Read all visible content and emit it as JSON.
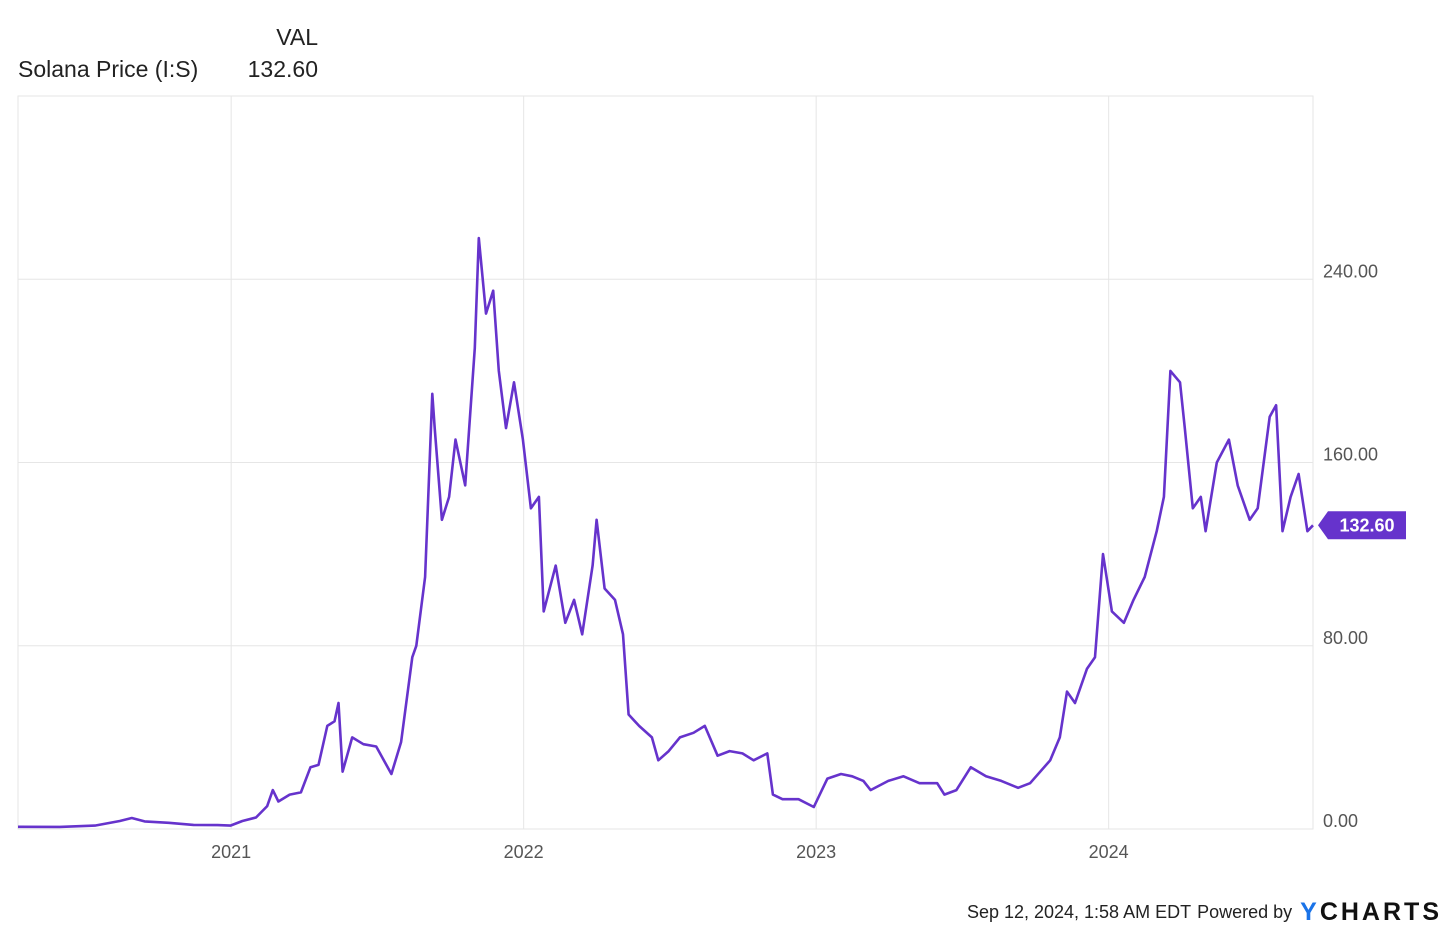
{
  "legend": {
    "header": "VAL",
    "series_name": "Solana Price (I:S)",
    "series_value": "132.60"
  },
  "last_value_badge": "132.60",
  "footer": {
    "timestamp": "Sep 12, 2024, 1:58 AM EDT",
    "powered_by": "Powered by",
    "brand_y": "Y",
    "brand_rest": "CHARTS"
  },
  "colors": {
    "series": "#6633cc",
    "grid": "#e6e6e6",
    "axis_text": "#555555",
    "brand_accent": "#1a73e8"
  },
  "chart_data": {
    "type": "line",
    "title": "",
    "xlabel": "",
    "ylabel": "",
    "x_ticks": [
      {
        "date": "2021-01-01",
        "label": "2021"
      },
      {
        "date": "2022-01-01",
        "label": "2022"
      },
      {
        "date": "2023-01-01",
        "label": "2023"
      },
      {
        "date": "2024-01-01",
        "label": "2024"
      }
    ],
    "y_ticks": [
      "0.00",
      "80.00",
      "160.00",
      "240.00"
    ],
    "ylim": [
      0,
      320
    ],
    "xlim": [
      "2020-04-10",
      "2024-09-12"
    ],
    "grid": true,
    "legend_position": "top-left",
    "series": [
      {
        "name": "Solana Price (I:S)",
        "points": [
          [
            "2020-04-10",
            0.95
          ],
          [
            "2020-06-01",
            0.9
          ],
          [
            "2020-07-15",
            1.5
          ],
          [
            "2020-08-15",
            3.5
          ],
          [
            "2020-08-30",
            4.8
          ],
          [
            "2020-09-15",
            3.3
          ],
          [
            "2020-10-15",
            2.7
          ],
          [
            "2020-11-15",
            1.8
          ],
          [
            "2020-12-15",
            1.7
          ],
          [
            "2020-12-31",
            1.5
          ],
          [
            "2021-01-15",
            3.5
          ],
          [
            "2021-02-01",
            5
          ],
          [
            "2021-02-15",
            10
          ],
          [
            "2021-02-22",
            17
          ],
          [
            "2021-03-01",
            12
          ],
          [
            "2021-03-15",
            15
          ],
          [
            "2021-03-29",
            16
          ],
          [
            "2021-04-10",
            27
          ],
          [
            "2021-04-20",
            28
          ],
          [
            "2021-05-01",
            45
          ],
          [
            "2021-05-10",
            47
          ],
          [
            "2021-05-15",
            55
          ],
          [
            "2021-05-20",
            25
          ],
          [
            "2021-06-01",
            40
          ],
          [
            "2021-06-15",
            37
          ],
          [
            "2021-07-01",
            36
          ],
          [
            "2021-07-20",
            24
          ],
          [
            "2021-08-01",
            38
          ],
          [
            "2021-08-15",
            75
          ],
          [
            "2021-08-20",
            80
          ],
          [
            "2021-08-31",
            110
          ],
          [
            "2021-09-09",
            190
          ],
          [
            "2021-09-12",
            175
          ],
          [
            "2021-09-21",
            135
          ],
          [
            "2021-09-30",
            145
          ],
          [
            "2021-10-08",
            170
          ],
          [
            "2021-10-20",
            150
          ],
          [
            "2021-11-01",
            210
          ],
          [
            "2021-11-06",
            258
          ],
          [
            "2021-11-15",
            225
          ],
          [
            "2021-11-24",
            235
          ],
          [
            "2021-12-01",
            200
          ],
          [
            "2021-12-10",
            175
          ],
          [
            "2021-12-20",
            195
          ],
          [
            "2021-12-31",
            170
          ],
          [
            "2022-01-10",
            140
          ],
          [
            "2022-01-20",
            145
          ],
          [
            "2022-01-26",
            95
          ],
          [
            "2022-02-10",
            115
          ],
          [
            "2022-02-22",
            90
          ],
          [
            "2022-03-05",
            100
          ],
          [
            "2022-03-15",
            85
          ],
          [
            "2022-03-28",
            115
          ],
          [
            "2022-04-02",
            135
          ],
          [
            "2022-04-12",
            105
          ],
          [
            "2022-04-25",
            100
          ],
          [
            "2022-05-05",
            85
          ],
          [
            "2022-05-12",
            50
          ],
          [
            "2022-05-25",
            45
          ],
          [
            "2022-06-10",
            40
          ],
          [
            "2022-06-18",
            30
          ],
          [
            "2022-07-01",
            34
          ],
          [
            "2022-07-15",
            40
          ],
          [
            "2022-08-01",
            42
          ],
          [
            "2022-08-15",
            45
          ],
          [
            "2022-08-31",
            32
          ],
          [
            "2022-09-15",
            34
          ],
          [
            "2022-10-01",
            33
          ],
          [
            "2022-10-15",
            30
          ],
          [
            "2022-11-01",
            33
          ],
          [
            "2022-11-08",
            15
          ],
          [
            "2022-11-20",
            13
          ],
          [
            "2022-12-10",
            13
          ],
          [
            "2022-12-29",
            9.6
          ],
          [
            "2023-01-15",
            22
          ],
          [
            "2023-02-01",
            24
          ],
          [
            "2023-02-15",
            23
          ],
          [
            "2023-03-01",
            21
          ],
          [
            "2023-03-10",
            17
          ],
          [
            "2023-04-01",
            21
          ],
          [
            "2023-04-20",
            23
          ],
          [
            "2023-05-10",
            20
          ],
          [
            "2023-06-01",
            20
          ],
          [
            "2023-06-10",
            15
          ],
          [
            "2023-06-25",
            17
          ],
          [
            "2023-07-13",
            27
          ],
          [
            "2023-08-01",
            23
          ],
          [
            "2023-08-20",
            21
          ],
          [
            "2023-09-10",
            18
          ],
          [
            "2023-09-25",
            20
          ],
          [
            "2023-10-20",
            30
          ],
          [
            "2023-11-01",
            40
          ],
          [
            "2023-11-10",
            60
          ],
          [
            "2023-11-20",
            55
          ],
          [
            "2023-12-05",
            70
          ],
          [
            "2023-12-15",
            75
          ],
          [
            "2023-12-25",
            120
          ],
          [
            "2024-01-05",
            95
          ],
          [
            "2024-01-20",
            90
          ],
          [
            "2024-02-01",
            100
          ],
          [
            "2024-02-15",
            110
          ],
          [
            "2024-03-01",
            130
          ],
          [
            "2024-03-10",
            145
          ],
          [
            "2024-03-18",
            200
          ],
          [
            "2024-03-30",
            195
          ],
          [
            "2024-04-05",
            175
          ],
          [
            "2024-04-15",
            140
          ],
          [
            "2024-04-25",
            145
          ],
          [
            "2024-05-01",
            130
          ],
          [
            "2024-05-15",
            160
          ],
          [
            "2024-05-30",
            170
          ],
          [
            "2024-06-10",
            150
          ],
          [
            "2024-06-25",
            135
          ],
          [
            "2024-07-05",
            140
          ],
          [
            "2024-07-20",
            180
          ],
          [
            "2024-07-28",
            185
          ],
          [
            "2024-08-05",
            130
          ],
          [
            "2024-08-15",
            145
          ],
          [
            "2024-08-25",
            155
          ],
          [
            "2024-09-05",
            130
          ],
          [
            "2024-09-12",
            132.6
          ]
        ]
      }
    ]
  }
}
